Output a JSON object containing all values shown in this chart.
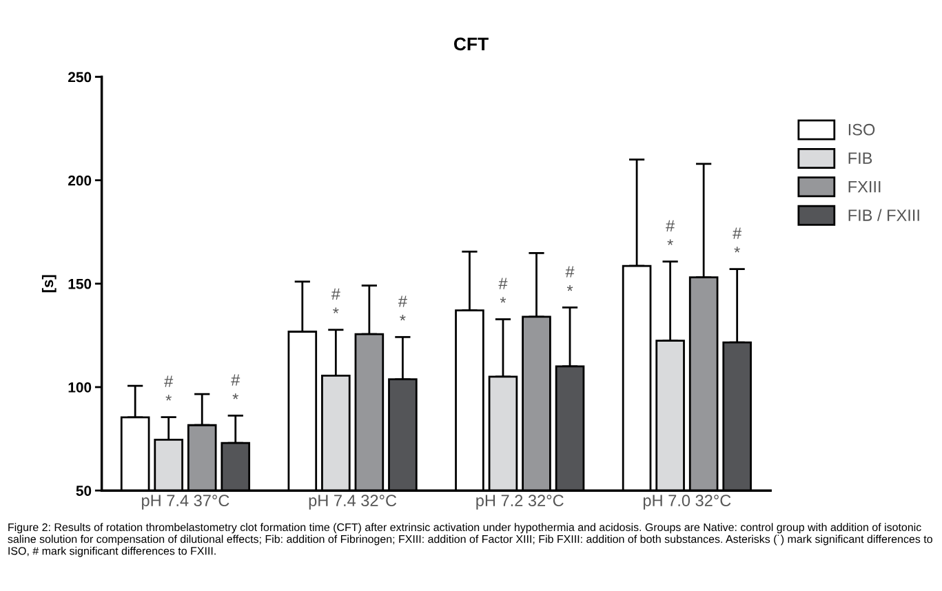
{
  "chart_data": {
    "type": "bar",
    "title": "CFT",
    "ylabel": "[s]",
    "categories": [
      "pH 7.4 37°C",
      "pH 7.4 32°C",
      "pH 7.2 32°C",
      "pH 7.0 32°C"
    ],
    "series": [
      {
        "name": "ISO",
        "color": "#ffffff",
        "values": [
          85.4,
          126.8,
          137.1,
          158.6
        ],
        "errors": [
          [
            85.4,
            100.6
          ],
          [
            126.8,
            151.0
          ],
          [
            137.1,
            165.5
          ],
          [
            158.6,
            210.0
          ]
        ]
      },
      {
        "name": "FIB",
        "color": "#d9dadc",
        "values": [
          74.6,
          105.5,
          105.0,
          122.4
        ],
        "errors": [
          [
            74.6,
            85.5
          ],
          [
            105.5,
            127.7
          ],
          [
            105.0,
            132.8
          ],
          [
            122.4,
            160.7
          ]
        ]
      },
      {
        "name": "FXIII",
        "color": "#96979a",
        "values": [
          81.6,
          125.6,
          134.0,
          153.1
        ],
        "errors": [
          [
            81.6,
            96.6
          ],
          [
            125.6,
            149.1
          ],
          [
            134.0,
            164.8
          ],
          [
            153.1,
            207.9
          ]
        ]
      },
      {
        "name": "FIB / FXIII",
        "color": "#545558",
        "values": [
          73.0,
          103.8,
          110.0,
          121.6
        ],
        "errors": [
          [
            73.0,
            86.2
          ],
          [
            103.8,
            124.2
          ],
          [
            110.0,
            138.5
          ],
          [
            121.6,
            157.1
          ]
        ]
      }
    ],
    "ylim": [
      50,
      250
    ],
    "yticks": [
      50,
      100,
      150,
      200,
      250
    ],
    "grid": false,
    "legend": "top right",
    "annotations": [
      "*",
      "#",
      "*",
      "#",
      "*",
      "#",
      "*",
      "#",
      "*",
      "#",
      "*",
      "#",
      "*",
      "#",
      "*",
      "#",
      "Figure 2: Results of rotation thrombelastometry clot formation time (CFT) after extrinsic activation under hypothermia and acidosis. Groups are Native: control group with addition of isotonic saline solution for compensation of dilutional effects; Fib: addition of Fibrinogen; FXIII: addition of Factor XIII; Fib FXIII: addition of both substances. Asterisks (˙) mark significant differences to ISO, # mark significant differences to FXIII."
    ]
  }
}
